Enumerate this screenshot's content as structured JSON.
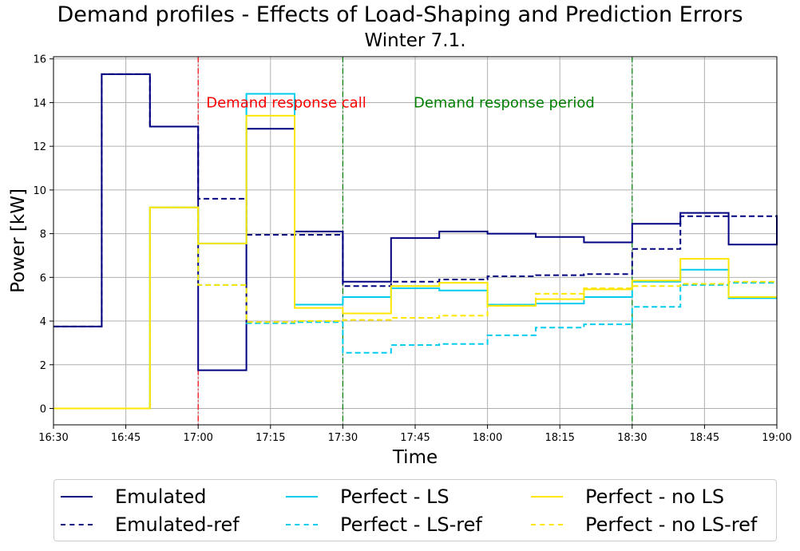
{
  "title": "Demand profiles - Effects of Load-Shaping and Prediction Errors",
  "subtitle": "Winter 7.1.",
  "chart_data": {
    "type": "line",
    "drawstyle": "steps-post",
    "xlabel": "Time",
    "ylabel": "Power [kW]",
    "xlim_minutes": [
      0,
      150
    ],
    "ylim": [
      -0.75,
      16.1
    ],
    "x_tick_labels": [
      "16:30",
      "16:45",
      "17:00",
      "17:15",
      "17:30",
      "17:45",
      "18:00",
      "18:15",
      "18:30",
      "18:45",
      "19:00"
    ],
    "y_tick_labels": [
      "0",
      "2",
      "4",
      "6",
      "8",
      "10",
      "12",
      "14",
      "16"
    ],
    "grid": true,
    "x_times": [
      "16:30",
      "16:40",
      "16:50",
      "17:00",
      "17:10",
      "17:20",
      "17:30",
      "17:40",
      "17:50",
      "18:00",
      "18:10",
      "18:20",
      "18:30",
      "18:40",
      "18:50",
      "19:00"
    ],
    "series": [
      {
        "name": "Emulated",
        "color": "#000080",
        "dash": "solid",
        "values": [
          3.75,
          15.3,
          12.9,
          1.75,
          12.8,
          8.1,
          5.8,
          7.8,
          8.1,
          8.0,
          7.85,
          7.6,
          8.45,
          8.95,
          7.5,
          8.85
        ]
      },
      {
        "name": "Emulated-ref",
        "color": "#000080",
        "dash": "dashed",
        "values": [
          3.75,
          15.3,
          12.9,
          9.6,
          7.95,
          7.95,
          5.6,
          5.8,
          5.9,
          6.05,
          6.1,
          6.15,
          7.3,
          8.8,
          8.8,
          8.8
        ]
      },
      {
        "name": "Perfect - LS",
        "color": "#00CCEE",
        "dash": "solid",
        "values": [
          0.0,
          0.0,
          9.2,
          7.55,
          14.4,
          4.75,
          5.1,
          5.5,
          5.4,
          4.75,
          4.8,
          5.1,
          5.8,
          6.35,
          5.05,
          5.05
        ]
      },
      {
        "name": "Perfect - LS-ref",
        "color": "#00CCEE",
        "dash": "dashed",
        "values": [
          0.0,
          0.0,
          9.2,
          5.65,
          3.9,
          3.95,
          2.55,
          2.9,
          2.95,
          3.35,
          3.7,
          3.85,
          4.65,
          5.65,
          5.75,
          5.75
        ]
      },
      {
        "name": "Perfect - no LS",
        "color": "#FFE600",
        "dash": "solid",
        "values": [
          0.0,
          0.0,
          9.2,
          7.55,
          13.4,
          4.6,
          4.35,
          5.6,
          5.75,
          4.7,
          5.0,
          5.45,
          5.85,
          6.85,
          5.1,
          5.1
        ]
      },
      {
        "name": "Perfect - no LS-ref",
        "color": "#FFE600",
        "dash": "dashed",
        "values": [
          0.0,
          0.0,
          9.2,
          5.65,
          3.95,
          4.0,
          4.05,
          4.15,
          4.25,
          4.7,
          5.25,
          5.5,
          5.6,
          5.7,
          5.8,
          5.8
        ]
      }
    ],
    "vlines": [
      {
        "x_minutes": 30,
        "color": "#ff0000"
      },
      {
        "x_minutes": 60,
        "color": "#008000"
      },
      {
        "x_minutes": 120,
        "color": "#008000"
      }
    ],
    "annotations": [
      {
        "text": "Demand response call",
        "x_minutes": 31,
        "y": 14.0,
        "color": "#ff0000"
      },
      {
        "text": "Demand response period",
        "x_minutes": 74,
        "y": 14.0,
        "color": "#008000"
      }
    ],
    "legend": {
      "position": "bottom-center",
      "columns": 3
    }
  }
}
